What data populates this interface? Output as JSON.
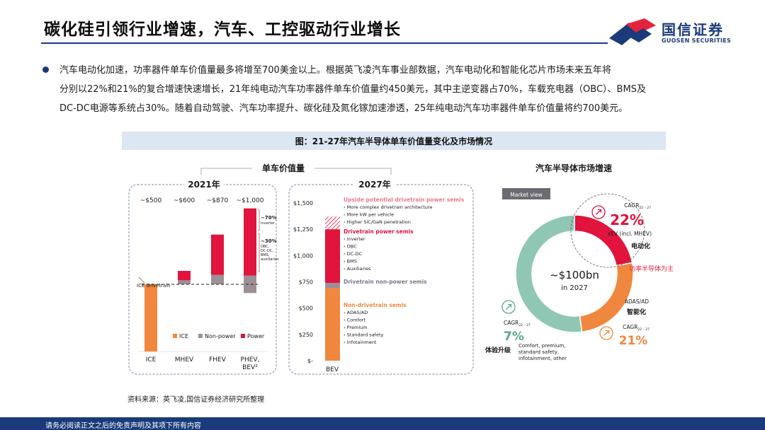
{
  "header": {
    "title": "碳化硅引领行业增速，汽车、工控驱动行业增长",
    "logo_cn": "国信证券",
    "logo_en": "GUOSEN SECURITIES"
  },
  "body_text": {
    "line1": "汽车电动化加速，功率器件单车价值量最多将增至700美金以上。根据英飞凌汽车事业部数据，汽车电动化和智能化芯片市场未来五年将",
    "line2": "分别以22%和21%的复合增速快速增长，21年纯电动汽车功率器件单车价值量约450美元，其中主逆变器占70%，车载充电器（OBC）、BMS及",
    "line3": "DC-DC电源等系统占30%。随着自动驾驶、汽车功率提升、碳化硅及氮化镓加速渗透，25年纯电动汽车功率器件单车价值量将约700美元。"
  },
  "figure": {
    "title": "图：21-27年汽车半导体单车价值量变化及市场情况",
    "source": "资料来源：英飞凌,国信证券经济研究所整理"
  },
  "footer": {
    "disclaimer": "请务必阅读正文之后的免责声明及其项下所有内容"
  },
  "colors": {
    "navy": "#1a3a7a",
    "ice": "#f0873e",
    "nonpower": "#9c8f96",
    "power": "#e0143c",
    "donut_green": "#8fc7b4",
    "accent_red": "#e3233e"
  },
  "chart_data": [
    {
      "type": "bar",
      "title": "单车价值量",
      "subtitle": "2021年",
      "categories": [
        "ICE",
        "MHEV",
        "FHEV",
        "PHEV, BEV²"
      ],
      "top_labels": [
        "~$500",
        "~$600",
        "~$870",
        "~$1,000"
      ],
      "stack_type": "waterfall",
      "ice_baseline": 500,
      "series": [
        {
          "name": "ICE",
          "color": "#f0873e",
          "values": [
            500,
            0,
            0,
            0
          ]
        },
        {
          "name": "Non-power",
          "color": "#9c8f96",
          "values": [
            0,
            30,
            70,
            130
          ]
        },
        {
          "name": "Power",
          "color": "#e0143c",
          "values": [
            0,
            70,
            300,
            500
          ]
        }
      ],
      "annotations": {
        "baseline_label": "ICE drivetrain",
        "pct_inverter": "~70%",
        "pct_inverter_note": "Inverter",
        "pct_other": "~30%",
        "pct_other_note": [
          "OBC,",
          "DC-DC,",
          "BMS,",
          "auxiliaries"
        ]
      }
    },
    {
      "type": "bar",
      "subtitle": "2027年",
      "categories": [
        "BEV"
      ],
      "y_ticks": [
        "$1,500",
        "$1,250",
        "$1,000",
        "$750",
        "$500",
        "$250",
        "$-"
      ],
      "ylim": [
        0,
        1500
      ],
      "segments": [
        {
          "name": "Non-drivetrain semis",
          "from": 0,
          "to": 690,
          "color": "#f0873e",
          "items": [
            "ADAS/AD",
            "Comfort",
            "Premium",
            "Standard safety",
            "Infotainment"
          ]
        },
        {
          "name": "Drivetrain non-power semis",
          "from": 690,
          "to": 740,
          "color": "#9c8f96",
          "items": []
        },
        {
          "name": "Drivetrain power semis",
          "from": 740,
          "to": 1250,
          "color": "#e0143c",
          "items": [
            "Inverter",
            "OBC",
            "DC-DC",
            "BMS",
            "Auxiliaries"
          ]
        },
        {
          "name": "Upside potential drivetrain power semis",
          "from": 1250,
          "to": 1370,
          "color": "#f4a3b2",
          "pattern": "hatched",
          "items": [
            "More complex drivetrain architecture",
            "More kW per vehicle",
            "Higher SiC/GaN penetration"
          ]
        }
      ]
    },
    {
      "type": "pie",
      "title": "汽车半导体市场增速",
      "tag": "Market view",
      "center_value": "~$100bn",
      "center_sub": "in 2027",
      "cagr_label": "CAGR",
      "cagr_sub": "22 – 27",
      "slices": [
        {
          "name": "xEV (incl. MHEV)",
          "cn": "电动化",
          "cagr": "22%",
          "share": 0.22,
          "color": "#e0143c",
          "note": "功率半导体为主"
        },
        {
          "name": "ADAS/AD",
          "cn": "智能化",
          "cagr": "21%",
          "share": 0.26,
          "color": "#f0873e"
        },
        {
          "name": "Comfort, premium, standard safety, infotainment, other",
          "cn": "体验升级",
          "cagr": "7%",
          "share": 0.52,
          "color": "#8fc7b4",
          "name_lines": [
            "Comfort, premium,",
            "standard safety,",
            "infotainment, other"
          ]
        }
      ]
    }
  ]
}
